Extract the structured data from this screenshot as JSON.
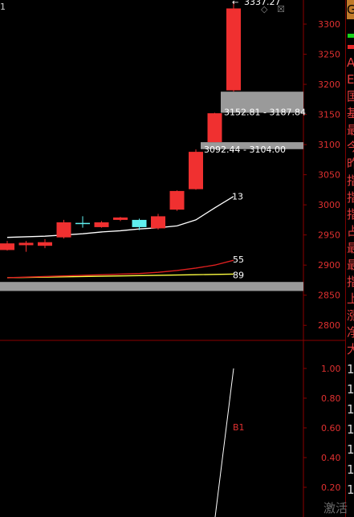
{
  "window": {
    "corner_label": "1",
    "minimize_glyph": "◇",
    "close_glyph": "☒"
  },
  "price_axis": {
    "ticks": [
      "3300",
      "3250",
      "3200",
      "3150",
      "3100",
      "3050",
      "3000",
      "2950",
      "2900",
      "2850",
      "2800"
    ],
    "range": [
      2775,
      3340
    ]
  },
  "indicator_axis": {
    "ticks": [
      "1.00",
      "0.80",
      "0.60",
      "0.40",
      "0.20"
    ],
    "range": [
      0.0,
      1.07
    ]
  },
  "annotations": {
    "high_label": "3337.27",
    "high_arrow": "←",
    "zone_upper": "3152.81 - 3187.84",
    "zone_lower": "3092.44 - 3104.00",
    "ma13": "13",
    "ma55": "55",
    "ma89": "89",
    "b1": "B1"
  },
  "gap_zones": [
    {
      "from": 3152.81,
      "to": 3187.84
    },
    {
      "from": 3092.44,
      "to": 3104.0
    },
    {
      "from": 2857,
      "to": 2872
    }
  ],
  "chart_data": {
    "type": "candlestick",
    "candles": [
      {
        "o": 2925,
        "c": 2936,
        "h": 2940,
        "l": 2924,
        "color": "red"
      },
      {
        "o": 2933,
        "c": 2937,
        "h": 2940,
        "l": 2922,
        "color": "red"
      },
      {
        "o": 2932,
        "c": 2938,
        "h": 2943,
        "l": 2928,
        "color": "red"
      },
      {
        "o": 2946,
        "c": 2971,
        "h": 2975,
        "l": 2944,
        "color": "red"
      },
      {
        "o": 2969,
        "c": 2970,
        "h": 2981,
        "l": 2962,
        "color": "cyan"
      },
      {
        "o": 2963,
        "c": 2971,
        "h": 2973,
        "l": 2962,
        "color": "red"
      },
      {
        "o": 2975,
        "c": 2979,
        "h": 2980,
        "l": 2973,
        "color": "red"
      },
      {
        "o": 2975,
        "c": 2963,
        "h": 2977,
        "l": 2958,
        "color": "cyan"
      },
      {
        "o": 2961,
        "c": 2981,
        "h": 2985,
        "l": 2959,
        "color": "red"
      },
      {
        "o": 2992,
        "c": 3023,
        "h": 3024,
        "l": 2990,
        "color": "red"
      },
      {
        "o": 3026,
        "c": 3088,
        "h": 3092,
        "l": 3025,
        "color": "red"
      },
      {
        "o": 3104,
        "c": 3152,
        "h": 3152.81,
        "l": 3104,
        "color": "red"
      },
      {
        "o": 3190,
        "c": 3326,
        "h": 3337.27,
        "l": 3188,
        "color": "red"
      }
    ],
    "ma13": [
      2946,
      2947,
      2948,
      2950,
      2952,
      2955,
      2957,
      2960,
      2962,
      2965,
      2975,
      2995,
      3014
    ],
    "ma55": [
      2879,
      2880,
      2881,
      2882,
      2883,
      2884,
      2885,
      2886,
      2888,
      2891,
      2895,
      2900,
      2908
    ],
    "ma89": [
      2879,
      2879.5,
      2880,
      2880.5,
      2881,
      2881.5,
      2882,
      2882.5,
      2883,
      2883.5,
      2884,
      2884.5,
      2885
    ],
    "indicator_line": [
      0.0,
      1.0
    ]
  },
  "side_panel": {
    "badge": "G",
    "text_lines": [
      "A",
      "E",
      "国",
      "基",
      "最",
      "今",
      "昨",
      "指",
      "指",
      "指",
      "占",
      "最",
      "最",
      "指",
      "上",
      "涨",
      "净",
      "大"
    ],
    "numbers": [
      "1",
      "1",
      "1",
      "1",
      "1",
      "1",
      "1",
      "1",
      "1",
      "1",
      "1",
      "1"
    ]
  },
  "watermark": "激活"
}
